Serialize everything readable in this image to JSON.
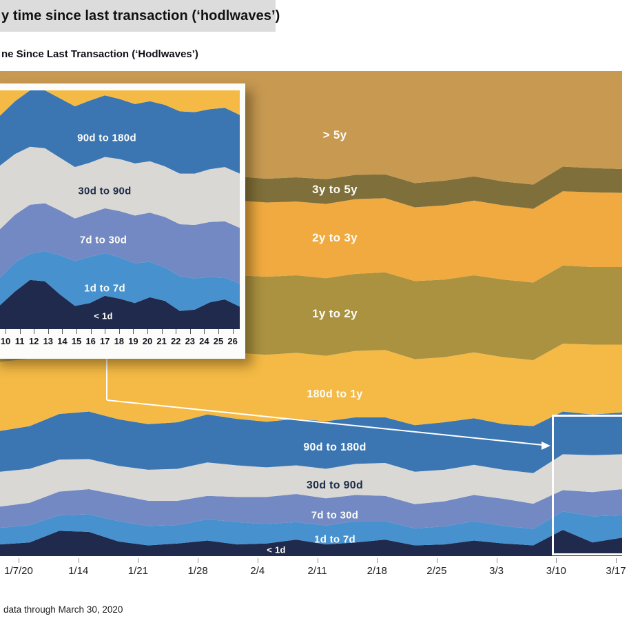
{
  "header": {
    "title": "y time since last transaction (‘hodlwaves’)"
  },
  "subtitle": "ne Since Last Transaction (‘Hodlwaves’)",
  "footer": {
    "note": "data through March 30, 2020"
  },
  "colors": {
    "lt_1d": "#1f2a4d",
    "d1_7d": "#4791ce",
    "d7_30d": "#7389c3",
    "d30_90d": "#d9d8d4",
    "d90_180d": "#3b76b3",
    "d180_1y": "#f4ba45",
    "y1_2y": "#aa9241",
    "y2_3y": "#f0aa40",
    "y3_5y": "#7f6f3a",
    "gt_5y": "#c79951",
    "title_bar_bg": "#dcdcdc",
    "highlight_border": "#ffffff"
  },
  "chart_data": [
    {
      "name": "main-hodlwaves",
      "type": "area",
      "stacked": true,
      "legend_position": "in-band labels",
      "grid": false,
      "ylim": [
        0,
        100
      ],
      "x_tick_labels": [
        "1/7/20",
        "1/14",
        "1/21",
        "1/28",
        "2/4",
        "2/11",
        "2/18",
        "2/25",
        "3/3",
        "3/10",
        "3/17"
      ],
      "series": [
        {
          "name": "< 1d",
          "color": "#1f2a4d",
          "values": [
            2.4,
            2.8,
            5.2,
            5.0,
            3.0,
            2.2,
            2.6,
            3.2,
            2.4,
            2.6,
            3.4,
            2.4,
            2.8,
            3.4,
            2.2,
            2.4,
            3.2,
            2.6,
            2.2,
            5.4,
            2.8,
            3.8
          ]
        },
        {
          "name": "1d to 7d",
          "color": "#4791ce",
          "values": [
            3.4,
            3.6,
            3.2,
            3.6,
            4.2,
            4.0,
            3.8,
            4.4,
            4.6,
            4.0,
            3.6,
            3.9,
            4.4,
            3.8,
            3.5,
            3.7,
            4.0,
            3.6,
            3.4,
            3.8,
            5.4,
            4.6
          ]
        },
        {
          "name": "7d to 30d",
          "color": "#7389c3",
          "values": [
            4.4,
            4.6,
            4.9,
            5.2,
            5.4,
            5.2,
            5.0,
            4.8,
            5.2,
            5.6,
            5.8,
            5.6,
            5.4,
            5.2,
            5.0,
            5.2,
            5.4,
            5.6,
            5.2,
            4.4,
            5.0,
            5.4
          ]
        },
        {
          "name": "30d to 90d",
          "color": "#d9d8d4",
          "values": [
            7.2,
            7.0,
            6.6,
            6.2,
            6.0,
            6.4,
            6.6,
            6.9,
            6.5,
            6.1,
            5.9,
            6.1,
            6.4,
            6.8,
            6.7,
            6.5,
            6.2,
            6.0,
            6.3,
            7.4,
            7.6,
            7.2
          ]
        },
        {
          "name": "90d to 180d",
          "color": "#3b76b3",
          "values": [
            8.4,
            8.8,
            9.4,
            9.8,
            9.6,
            9.4,
            9.6,
            9.9,
            9.6,
            9.4,
            9.6,
            9.8,
            9.6,
            9.4,
            9.6,
            9.8,
            9.6,
            9.4,
            9.7,
            8.8,
            8.4,
            8.6
          ]
        },
        {
          "name": "180d to 1y",
          "color": "#f4ba45",
          "values": [
            14.2,
            13.9,
            13.6,
            13.4,
            13.6,
            13.9,
            13.7,
            13.4,
            13.6,
            13.8,
            13.6,
            13.5,
            13.7,
            13.9,
            13.6,
            13.4,
            13.6,
            13.8,
            13.6,
            14.0,
            14.4,
            14.0
          ]
        },
        {
          "name": "1y to 2y",
          "color": "#aa9241",
          "values": [
            16.2,
            16.1,
            16.0,
            15.9,
            16.0,
            16.1,
            16.0,
            15.9,
            16.0,
            16.1,
            16.0,
            16.0,
            15.9,
            16.0,
            16.1,
            16.0,
            15.9,
            16.0,
            16.0,
            16.1,
            16.0,
            16.0
          ]
        },
        {
          "name": "2y to 3y",
          "color": "#f0aa40",
          "values": [
            15.4,
            15.3,
            15.2,
            15.3,
            15.4,
            15.3,
            15.2,
            15.3,
            15.4,
            15.3,
            15.2,
            15.3,
            15.4,
            15.3,
            15.2,
            15.3,
            15.4,
            15.3,
            15.2,
            15.3,
            15.4,
            15.3
          ]
        },
        {
          "name": "3y to 5y",
          "color": "#7f6f3a",
          "values": [
            4.8,
            4.9,
            5.0,
            5.1,
            5.0,
            4.9,
            5.0,
            5.1,
            5.0,
            4.9,
            5.0,
            5.1,
            5.0,
            4.9,
            5.0,
            5.1,
            5.0,
            4.9,
            5.0,
            5.1,
            5.0,
            4.9
          ]
        },
        {
          "name": "> 5y",
          "color": "#c79951",
          "rest": true
        }
      ]
    },
    {
      "name": "inset-zoom-march-10-26",
      "type": "area",
      "stacked": true,
      "grid": false,
      "ylim": [
        0,
        33
      ],
      "x_tick_labels": [
        "10",
        "11",
        "12",
        "13",
        "14",
        "15",
        "16",
        "17",
        "18",
        "19",
        "20",
        "21",
        "22",
        "23",
        "24",
        "25",
        "26"
      ],
      "series": [
        {
          "name": "< 1d",
          "color": "#1f2a4d",
          "values": [
            3.3,
            5.2,
            6.8,
            6.6,
            4.8,
            3.2,
            3.6,
            4.6,
            4.2,
            3.6,
            4.4,
            3.9,
            2.5,
            2.7,
            3.7,
            4.1,
            3.1
          ]
        },
        {
          "name": "1d to 7d",
          "color": "#4791ce",
          "values": [
            3.8,
            4.0,
            3.6,
            4.2,
            5.4,
            6.2,
            6.4,
            5.9,
            5.7,
            5.5,
            4.9,
            4.6,
            4.8,
            4.3,
            3.5,
            3.0,
            3.2
          ]
        },
        {
          "name": "7d to 30d",
          "color": "#7389c3",
          "values": [
            6.7,
            6.6,
            6.8,
            6.6,
            6.2,
            5.9,
            6.0,
            6.2,
            6.4,
            6.6,
            6.8,
            7.0,
            7.2,
            7.4,
            7.6,
            7.8,
            7.7
          ]
        },
        {
          "name": "30d to 90d",
          "color": "#d9d8d4",
          "values": [
            8.8,
            8.4,
            8.0,
            7.6,
            7.3,
            7.1,
            7.0,
            7.1,
            7.2,
            7.2,
            7.1,
            7.0,
            7.0,
            7.1,
            7.3,
            7.5,
            7.5
          ]
        },
        {
          "name": "90d to 180d",
          "color": "#3b76b3",
          "values": [
            6.9,
            7.3,
            7.8,
            8.0,
            8.2,
            8.4,
            8.6,
            8.5,
            8.3,
            8.2,
            8.3,
            8.5,
            8.6,
            8.5,
            8.3,
            8.2,
            8.1
          ]
        },
        {
          "name": "180d to 1y",
          "color": "#f4ba45",
          "rest": true
        }
      ]
    }
  ]
}
